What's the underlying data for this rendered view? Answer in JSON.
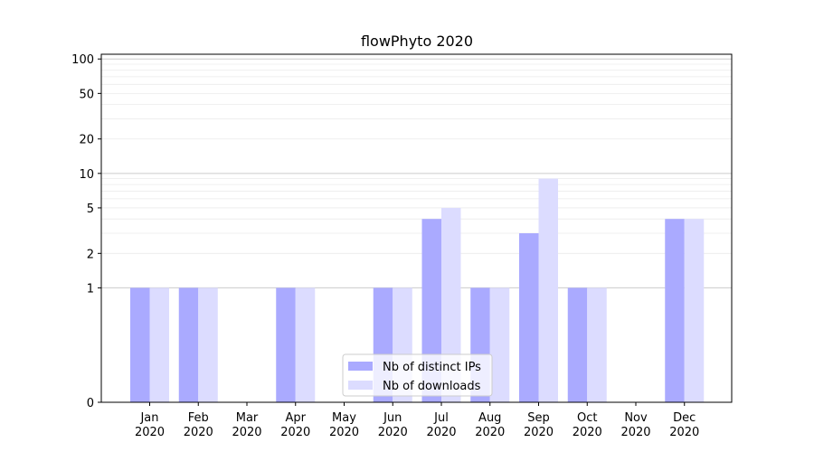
{
  "chart_data": {
    "type": "bar",
    "title": "flowPhyto 2020",
    "xlabel": "",
    "ylabel": "",
    "yscale": "symlog",
    "yticks": [
      0,
      1,
      2,
      5,
      10,
      20,
      50,
      100
    ],
    "ylim": [
      0,
      110
    ],
    "grid": true,
    "legend_position": "lower-center",
    "categories": [
      "Jan 2020",
      "Feb 2020",
      "Mar 2020",
      "Apr 2020",
      "May 2020",
      "Jun 2020",
      "Jul 2020",
      "Aug 2020",
      "Sep 2020",
      "Oct 2020",
      "Nov 2020",
      "Dec 2020"
    ],
    "category_lines": [
      [
        "Jan",
        "2020"
      ],
      [
        "Feb",
        "2020"
      ],
      [
        "Mar",
        "2020"
      ],
      [
        "Apr",
        "2020"
      ],
      [
        "May",
        "2020"
      ],
      [
        "Jun",
        "2020"
      ],
      [
        "Jul",
        "2020"
      ],
      [
        "Aug",
        "2020"
      ],
      [
        "Sep",
        "2020"
      ],
      [
        "Oct",
        "2020"
      ],
      [
        "Nov",
        "2020"
      ],
      [
        "Dec",
        "2020"
      ]
    ],
    "series": [
      {
        "name": "Nb of distinct IPs",
        "color": "#aaaaff",
        "values": [
          1,
          1,
          0,
          1,
          0,
          1,
          4,
          1,
          3,
          1,
          0,
          4
        ]
      },
      {
        "name": "Nb of downloads",
        "color": "#dcdcff",
        "values": [
          1,
          1,
          0,
          1,
          0,
          1,
          5,
          1,
          9,
          1,
          0,
          4
        ]
      }
    ]
  }
}
